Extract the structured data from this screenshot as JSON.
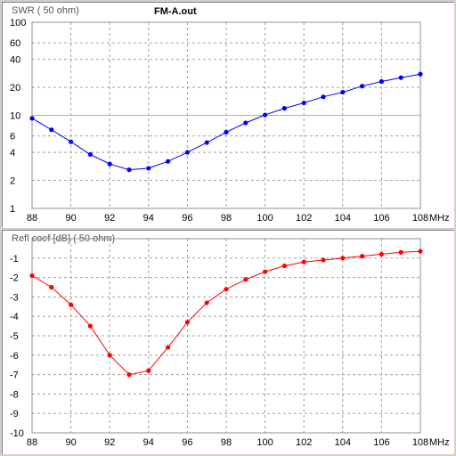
{
  "window": {
    "filename": "FM-A.out"
  },
  "chart_data": [
    {
      "type": "line",
      "title": "FM-A.out",
      "ylabel": "SWR ( 50 ohm)",
      "xlabel": "MHz",
      "yscale": "log",
      "ylim": [
        1,
        100
      ],
      "xlim": [
        88,
        108
      ],
      "x_ticks": [
        "88",
        "90",
        "92",
        "94",
        "96",
        "98",
        "100",
        "102",
        "104",
        "106",
        "108"
      ],
      "x_unit": "MHz",
      "y_ticks": [
        {
          "value": 100,
          "label": "100"
        },
        {
          "value": 60,
          "label": "60"
        },
        {
          "value": 40,
          "label": "40"
        },
        {
          "value": 20,
          "label": "20"
        },
        {
          "value": 10,
          "label": "10"
        },
        {
          "value": 6,
          "label": "6"
        },
        {
          "value": 4,
          "label": "4"
        },
        {
          "value": 2,
          "label": "2"
        },
        {
          "value": 1,
          "label": "1"
        }
      ],
      "grid": true,
      "color": "#0000ff",
      "x": [
        88,
        89,
        90,
        91,
        92,
        93,
        94,
        95,
        96,
        97,
        98,
        99,
        100,
        101,
        102,
        103,
        104,
        105,
        106,
        107,
        108
      ],
      "y": [
        9.3,
        7.0,
        5.2,
        3.8,
        3.0,
        2.6,
        2.7,
        3.2,
        4.0,
        5.1,
        6.6,
        8.3,
        10.1,
        11.9,
        13.6,
        15.8,
        17.7,
        20.6,
        23.1,
        25.4,
        27.7
      ]
    },
    {
      "type": "line",
      "ylabel": "Refl coef [dB] ( 50 ohm)",
      "xlabel": "MHz",
      "ylim": [
        -10,
        0
      ],
      "xlim": [
        88,
        108
      ],
      "x_ticks": [
        "88",
        "90",
        "92",
        "94",
        "96",
        "98",
        "100",
        "102",
        "104",
        "106",
        "108"
      ],
      "x_unit": "MHz",
      "y_ticks": [
        {
          "value": -1,
          "label": "-1"
        },
        {
          "value": -2,
          "label": "-2"
        },
        {
          "value": -3,
          "label": "-3"
        },
        {
          "value": -4,
          "label": "-4"
        },
        {
          "value": -5,
          "label": "-5"
        },
        {
          "value": -6,
          "label": "-6"
        },
        {
          "value": -7,
          "label": "-7"
        },
        {
          "value": -8,
          "label": "-8"
        },
        {
          "value": -9,
          "label": "-9"
        },
        {
          "value": -10,
          "label": "-10"
        }
      ],
      "grid": true,
      "color": "#ff0000",
      "x": [
        88,
        89,
        90,
        91,
        92,
        93,
        94,
        95,
        96,
        97,
        98,
        99,
        100,
        101,
        102,
        103,
        104,
        105,
        106,
        107,
        108
      ],
      "y": [
        -1.9,
        -2.5,
        -3.4,
        -4.5,
        -6.0,
        -7.0,
        -6.8,
        -5.6,
        -4.3,
        -3.3,
        -2.6,
        -2.1,
        -1.7,
        -1.4,
        -1.2,
        -1.1,
        -1.0,
        -0.9,
        -0.8,
        -0.7,
        -0.65
      ]
    }
  ]
}
